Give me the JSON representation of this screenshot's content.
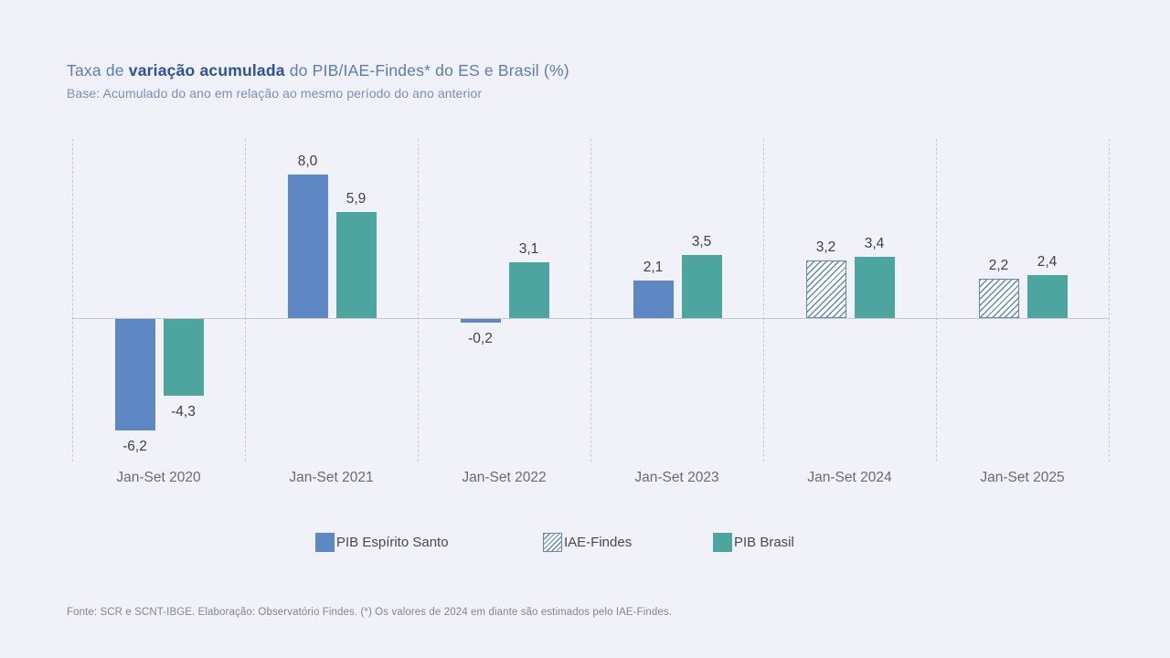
{
  "header": {
    "title_prefix": "Taxa de ",
    "title_bold": "variação acumulada",
    "title_suffix": " do PIB/IAE-Findes* do ES e Brasil (%)",
    "subtitle": "Base: Acumulado do ano em relação ao mesmo período do ano anterior"
  },
  "chart_data": {
    "type": "bar",
    "title": "Taxa de variação acumulada do PIB/IAE-Findes* do ES e Brasil (%)",
    "subtitle": "Base: Acumulado do ano em relação ao mesmo período do ano anterior",
    "categories": [
      "Jan-Set 2020",
      "Jan-Set 2021",
      "Jan-Set 2022",
      "Jan-Set 2023",
      "Jan-Set 2024",
      "Jan-Set 2025"
    ],
    "series": [
      {
        "name": "PIB Espírito Santo / IAE-Findes",
        "values": [
          -6.2,
          8.0,
          -0.2,
          2.1,
          3.2,
          2.2
        ],
        "labels": [
          "-6,2",
          "8,0",
          "-0,2",
          "2,1",
          "3,2",
          "2,2"
        ],
        "hatched": [
          false,
          false,
          false,
          false,
          true,
          true
        ],
        "color": "#5e88c4"
      },
      {
        "name": "PIB Brasil",
        "values": [
          -4.3,
          5.9,
          3.1,
          3.5,
          3.4,
          2.4
        ],
        "labels": [
          "-4,3",
          "5,9",
          "3,1",
          "3,5",
          "3,4",
          "2,4"
        ],
        "hatched": [
          false,
          false,
          false,
          false,
          false,
          false
        ],
        "color": "#4da5a0"
      }
    ],
    "ylim": [
      -7.6,
      9.4
    ],
    "grid": "vertical-dashed",
    "value_labels": "on",
    "decimal_separator": ",",
    "legend_position": "bottom"
  },
  "legend": {
    "items": [
      {
        "id": "pib-espirito-santo",
        "label": "PIB Espírito Santo",
        "swatch": "solid-blue"
      },
      {
        "id": "iae-findes",
        "label": "IAE-Findes",
        "swatch": "hatched"
      },
      {
        "id": "pib-brasil",
        "label": "PIB Brasil",
        "swatch": "solid-teal"
      }
    ]
  },
  "footer": {
    "source": "Fonte: SCR e SCNT-IBGE. Elaboração: Observatório Findes. (*) Os valores de 2024 em diante são estimados pelo IAE-Findes."
  },
  "colors": {
    "background": "#f1f2f9",
    "series_blue": "#5e88c4",
    "series_teal": "#4da5a0",
    "title_regular": "#5b7cba",
    "title_bold": "#2a52a2",
    "subtitle": "#7b8cc4",
    "value_label": "#3f3f42",
    "axis_label": "#6a6a6f",
    "gridline": "#c9cbd4",
    "footer": "#85858e"
  }
}
